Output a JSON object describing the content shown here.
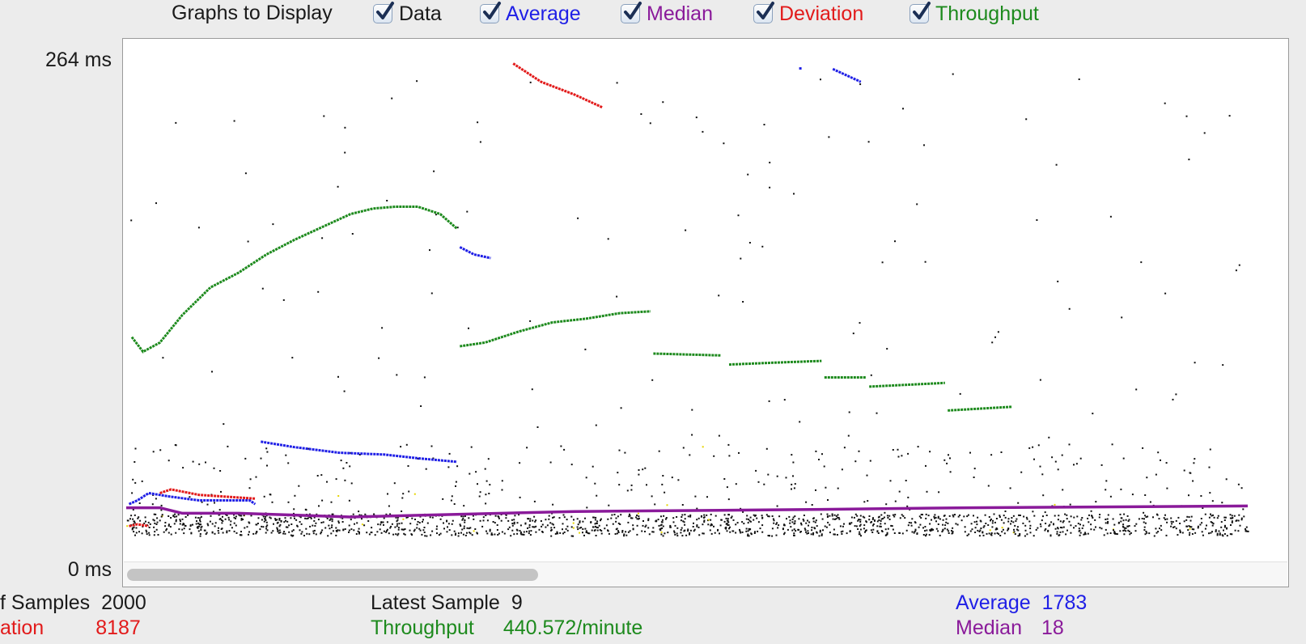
{
  "legend": {
    "title": "Graphs to Display",
    "items": [
      {
        "key": "data",
        "label": "Data",
        "color": "#1a1a1a",
        "checked": true
      },
      {
        "key": "average",
        "label": "Average",
        "color": "#1f1fe6",
        "checked": true
      },
      {
        "key": "median",
        "label": "Median",
        "color": "#8a1a9a",
        "checked": true
      },
      {
        "key": "deviation",
        "label": "Deviation",
        "color": "#e21b1b",
        "checked": true
      },
      {
        "key": "throughput",
        "label": "Throughput",
        "color": "#1d8a1d",
        "checked": true
      }
    ]
  },
  "axis": {
    "y_max_label": "264  ms",
    "y_min_label": "0  ms"
  },
  "stats": {
    "samples": {
      "label": "f Samples",
      "value": "2000",
      "color": "#1a1a1a"
    },
    "deviation": {
      "label": "ation",
      "value": "8187",
      "color": "#e21b1b"
    },
    "latest": {
      "label": "Latest Sample",
      "value": "9",
      "color": "#1a1a1a"
    },
    "throughput": {
      "label": "Throughput",
      "value": "440.572/minute",
      "color": "#1d8a1d"
    },
    "average": {
      "label": "Average",
      "value": "1783",
      "color": "#1f1fe6"
    },
    "median": {
      "label": "Median",
      "value": "18",
      "color": "#8a1a9a"
    }
  },
  "chart_data": {
    "type": "scatter",
    "title": "",
    "xlabel": "",
    "ylabel": "",
    "ylim": [
      0,
      264
    ],
    "xlim": [
      0,
      2000
    ],
    "grid": false,
    "series": [
      {
        "name": "Throughput",
        "color": "#1d8a1d",
        "segments": [
          [
            [
              10,
              113
            ],
            [
              30,
              105
            ],
            [
              60,
              110
            ],
            [
              100,
              125
            ],
            [
              150,
              140
            ],
            [
              200,
              148
            ],
            [
              250,
              158
            ],
            [
              300,
              166
            ],
            [
              350,
              173
            ],
            [
              400,
              180
            ],
            [
              440,
              183
            ],
            [
              480,
              184
            ],
            [
              520,
              184
            ],
            [
              560,
              180
            ],
            [
              590,
              172
            ]
          ],
          [
            [
              595,
              108
            ],
            [
              640,
              110
            ],
            [
              700,
              116
            ],
            [
              760,
              121
            ],
            [
              820,
              123
            ],
            [
              880,
              126
            ],
            [
              935,
              127
            ]
          ],
          [
            [
              940,
              104
            ],
            [
              1060,
              103
            ]
          ],
          [
            [
              1075,
              98
            ],
            [
              1150,
              99
            ],
            [
              1240,
              100
            ]
          ],
          [
            [
              1245,
              91
            ],
            [
              1320,
              91
            ]
          ],
          [
            [
              1325,
              86
            ],
            [
              1460,
              88
            ]
          ],
          [
            [
              1465,
              73
            ],
            [
              1580,
              75
            ]
          ]
        ]
      },
      {
        "name": "Average",
        "color": "#1f1fe6",
        "segments": [
          [
            [
              5,
              22
            ],
            [
              20,
              24
            ],
            [
              40,
              28
            ],
            [
              80,
              26
            ],
            [
              130,
              24
            ],
            [
              180,
              24
            ],
            [
              220,
              24
            ],
            [
              230,
              22
            ]
          ],
          [
            [
              240,
              56
            ],
            [
              300,
              53
            ],
            [
              380,
              50
            ],
            [
              460,
              49
            ],
            [
              520,
              47
            ],
            [
              590,
              45
            ]
          ],
          [
            [
              595,
              162
            ],
            [
              620,
              158
            ],
            [
              650,
              156
            ]
          ],
          [
            [
              1200,
              260
            ]
          ],
          [
            [
              1260,
              259
            ],
            [
              1310,
              252
            ]
          ]
        ]
      },
      {
        "name": "Deviation",
        "color": "#e21b1b",
        "segments": [
          [
            [
              5,
              10
            ],
            [
              20,
              11
            ],
            [
              40,
              10
            ]
          ],
          [
            [
              60,
              28
            ],
            [
              80,
              30
            ],
            [
              130,
              27
            ],
            [
              180,
              26
            ],
            [
              230,
              25
            ]
          ],
          [
            [
              690,
              262
            ],
            [
              740,
              252
            ],
            [
              800,
              245
            ],
            [
              850,
              238
            ]
          ]
        ]
      },
      {
        "name": "Median",
        "color": "#8a1a9a",
        "segments": [
          [
            [
              0,
              20
            ],
            [
              60,
              20
            ],
            [
              100,
              17
            ],
            [
              200,
              17
            ],
            [
              400,
              15
            ],
            [
              800,
              18
            ],
            [
              1200,
              19
            ],
            [
              1500,
              20
            ],
            [
              2000,
              21
            ]
          ]
        ]
      }
    ],
    "data_points_note": ""
  }
}
